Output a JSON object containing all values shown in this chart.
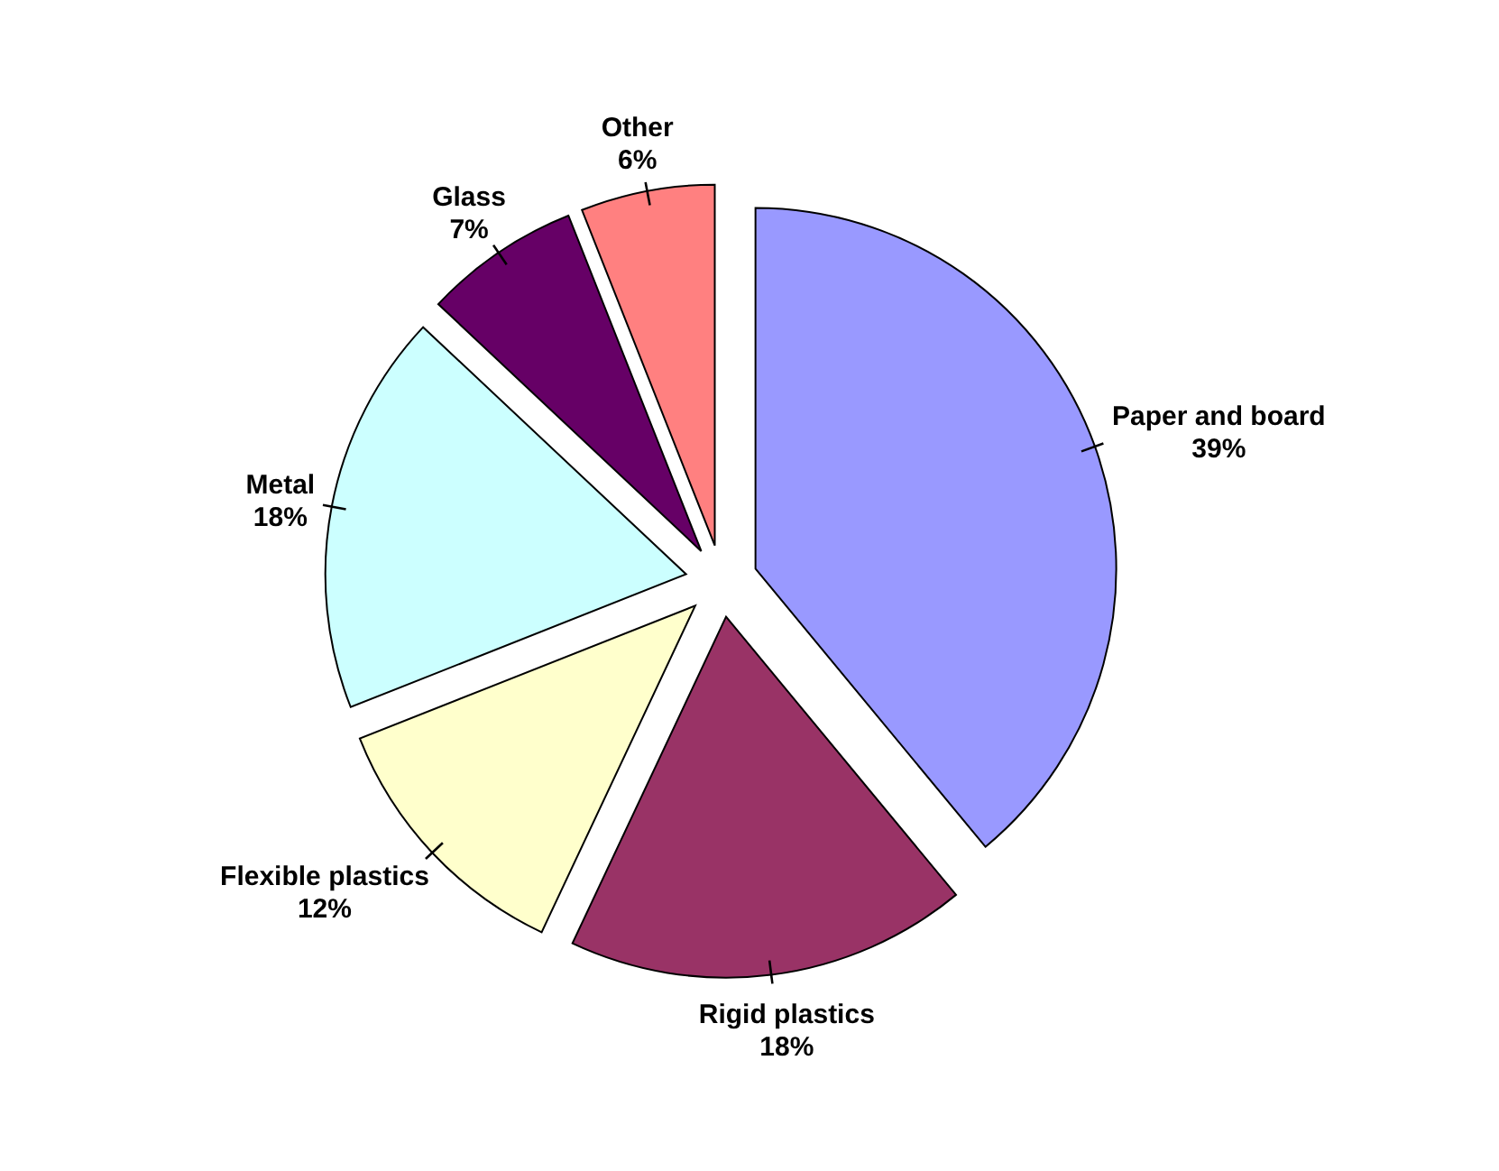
{
  "chart_data": {
    "type": "pie",
    "categories": [
      "Paper and board",
      "Rigid plastics",
      "Flexible plastics",
      "Metal",
      "Glass",
      "Other"
    ],
    "values": [
      39,
      18,
      12,
      18,
      7,
      6
    ],
    "value_labels": [
      "39%",
      "18%",
      "12%",
      "18%",
      "7%",
      "6%"
    ],
    "colors": [
      "#9999ff",
      "#993366",
      "#ffffcc",
      "#ccffff",
      "#660066",
      "#ff8080"
    ]
  }
}
